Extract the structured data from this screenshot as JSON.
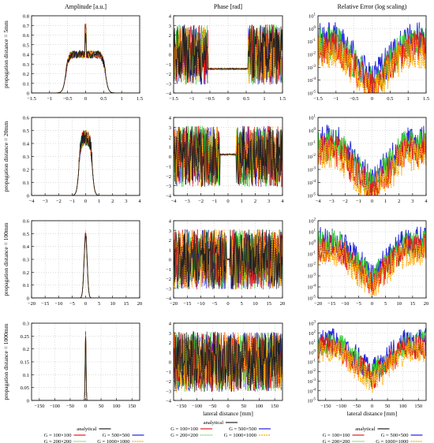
{
  "figure": {
    "column_titles": [
      "Amplitude [a.u.]",
      "Phase [rad]",
      "Relative Error (log scaling)"
    ],
    "row_labels": [
      "propagation distance = 5mm",
      "propagation distance = 20mm",
      "propagation distance = 100mm",
      "propagation distance = 1000mm"
    ],
    "xlabel": "lateral distance [mm]",
    "legend": [
      {
        "label": "analytical",
        "color": "#222222"
      },
      {
        "label": "G = 100×100",
        "color": "#e41a1c"
      },
      {
        "label": "G = 200×200",
        "color": "#33cc33"
      },
      {
        "label": "G = 500×500",
        "color": "#2222dd"
      },
      {
        "label": "G = 1000×1000",
        "color": "#ffaa00"
      }
    ]
  },
  "chart_data": [
    {
      "type": "line",
      "row": 0,
      "col": 0,
      "title": "Amplitude [a.u.]",
      "ylabel": "propagation distance = 5mm",
      "xlim": [
        -1.5,
        1.5
      ],
      "ylim": [
        0,
        0.8
      ],
      "x_ticks": [
        "-1.5",
        "-1",
        "-0.5",
        "0",
        "0.5",
        "1",
        "1.5"
      ],
      "y_ticks": [
        "0",
        "0.1",
        "0.2",
        "0.3",
        "0.4",
        "0.5",
        "0.6",
        "0.7",
        "0.8"
      ],
      "profile": {
        "kind": "rect",
        "halfwidth": 0.55,
        "level": 0.4,
        "peak": 0.72
      }
    },
    {
      "type": "line",
      "row": 0,
      "col": 1,
      "title": "Phase [rad]",
      "xlim": [
        -1.5,
        1.5
      ],
      "ylim": [
        -4,
        4
      ],
      "x_ticks": [
        "-1.5",
        "-1",
        "-0.5",
        "0",
        "0.5",
        "1",
        "1.5"
      ],
      "y_ticks": [
        "-4",
        "-3",
        "-2",
        "-1",
        "0",
        "1",
        "2",
        "3",
        "4"
      ],
      "profile": {
        "kind": "phase",
        "flat_halfwidth": 0.55,
        "flat_value": -1.5
      }
    },
    {
      "type": "line",
      "row": 0,
      "col": 2,
      "title": "Relative Error (log scaling)",
      "scale": "log",
      "xlim": [
        -1.5,
        1.5
      ],
      "ylim_exp": [
        -5,
        1
      ],
      "x_ticks": [
        "-1.5",
        "-1",
        "-0.5",
        "0",
        "0.5",
        "1",
        "1.5"
      ],
      "y_ticks": [
        "10^-5",
        "10^-4",
        "10^-3",
        "10^-2",
        "10^-1",
        "10^0",
        "10^1"
      ]
    },
    {
      "type": "line",
      "row": 1,
      "col": 0,
      "ylabel": "propagation distance = 20mm",
      "xlim": [
        -4,
        4
      ],
      "ylim": [
        0,
        0.6
      ],
      "x_ticks": [
        "-4",
        "-3",
        "-2",
        "-1",
        "0",
        "1",
        "2",
        "3",
        "4"
      ],
      "y_ticks": [
        "0",
        "0.1",
        "0.2",
        "0.3",
        "0.4",
        "0.5",
        "0.6"
      ],
      "profile": {
        "kind": "bump",
        "halfwidth": 0.5,
        "level": 0.42,
        "peak": 0.52
      }
    },
    {
      "type": "line",
      "row": 1,
      "col": 1,
      "xlim": [
        -4,
        4
      ],
      "ylim": [
        -4,
        4
      ],
      "x_ticks": [
        "-4",
        "-3",
        "-2",
        "-1",
        "0",
        "1",
        "2",
        "3",
        "4"
      ],
      "y_ticks": [
        "-4",
        "-3",
        "-2",
        "-1",
        "0",
        "1",
        "2",
        "3",
        "4"
      ],
      "profile": {
        "kind": "phase",
        "flat_halfwidth": 0.6,
        "flat_value": 0.2
      }
    },
    {
      "type": "line",
      "row": 1,
      "col": 2,
      "scale": "log",
      "xlim": [
        -4,
        4
      ],
      "ylim_exp": [
        -5,
        1
      ],
      "x_ticks": [
        "-4",
        "-3",
        "-2",
        "-1",
        "0",
        "1",
        "2",
        "3",
        "4"
      ],
      "y_ticks": [
        "10^-5",
        "10^-4",
        "10^-3",
        "10^-2",
        "10^-1",
        "10^0",
        "10^1"
      ]
    },
    {
      "type": "line",
      "row": 2,
      "col": 0,
      "ylabel": "propagation distance = 100mm",
      "xlim": [
        -20,
        20
      ],
      "ylim": [
        0,
        0.6
      ],
      "x_ticks": [
        "-20",
        "-15",
        "-10",
        "-5",
        "0",
        "5",
        "10",
        "15",
        "20"
      ],
      "y_ticks": [
        "0",
        "0.1",
        "0.2",
        "0.3",
        "0.4",
        "0.5",
        "0.6"
      ],
      "profile": {
        "kind": "spike",
        "halfwidth": 0.8,
        "peak": 0.53
      }
    },
    {
      "type": "line",
      "row": 2,
      "col": 1,
      "xlim": [
        -20,
        20
      ],
      "ylim": [
        -4,
        4
      ],
      "x_ticks": [
        "-20",
        "-15",
        "-10",
        "-5",
        "0",
        "5",
        "10",
        "15",
        "20"
      ],
      "y_ticks": [
        "-4",
        "-3",
        "-2",
        "-1",
        "0",
        "1",
        "2",
        "3",
        "4"
      ],
      "profile": {
        "kind": "phase",
        "flat_halfwidth": 0.6,
        "flat_value": 0
      }
    },
    {
      "type": "line",
      "row": 2,
      "col": 2,
      "scale": "log",
      "xlim": [
        -20,
        20
      ],
      "ylim_exp": [
        -5,
        2
      ],
      "x_ticks": [
        "-20",
        "-15",
        "-10",
        "-5",
        "0",
        "5",
        "10",
        "15",
        "20"
      ],
      "y_ticks": [
        "10^-5",
        "10^-4",
        "10^-3",
        "10^-2",
        "10^-1",
        "10^0",
        "10^1",
        "10^2"
      ]
    },
    {
      "type": "line",
      "row": 3,
      "col": 0,
      "ylabel": "propagation distance = 1000mm",
      "xlim": [
        -175,
        175
      ],
      "ylim": [
        0,
        0.3
      ],
      "x_ticks": [
        "-150",
        "-100",
        "-50",
        "0",
        "50",
        "100",
        "150"
      ],
      "y_ticks": [
        "0",
        "0.05",
        "0.1",
        "0.15",
        "0.2",
        "0.25",
        "0.3"
      ],
      "profile": {
        "kind": "spike",
        "halfwidth": 2,
        "peak": 0.28
      }
    },
    {
      "type": "line",
      "row": 3,
      "col": 1,
      "xlim": [
        -175,
        175
      ],
      "ylim": [
        -4,
        4
      ],
      "x_ticks": [
        "-150",
        "-100",
        "-50",
        "0",
        "50",
        "100",
        "150"
      ],
      "y_ticks": [
        "-4",
        "-3",
        "-2",
        "-1",
        "0",
        "1",
        "2",
        "3",
        "4"
      ],
      "profile": {
        "kind": "phase",
        "flat_halfwidth": 0,
        "flat_value": 0
      }
    },
    {
      "type": "line",
      "row": 3,
      "col": 2,
      "scale": "log",
      "xlim": [
        -175,
        175
      ],
      "ylim_exp": [
        -5,
        3
      ],
      "x_ticks": [
        "-150",
        "-100",
        "-50",
        "0",
        "50",
        "100",
        "150"
      ],
      "y_ticks": [
        "10^-5",
        "10^-4",
        "10^-3",
        "10^-2",
        "10^-1",
        "10^0",
        "10^1",
        "10^2",
        "10^3"
      ]
    }
  ]
}
